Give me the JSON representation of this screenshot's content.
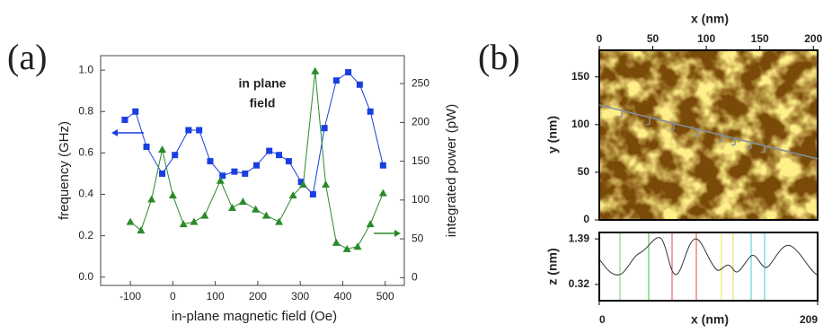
{
  "chart_data": [
    {
      "type": "line",
      "panel_label": "(a)",
      "xlabel": "in-plane magnetic field (Oe)",
      "ylabel": "frequency (GHz)",
      "y2label": "integrated power (pW)",
      "annotations": [
        "in plane",
        "field"
      ],
      "xlim": [
        -170,
        545
      ],
      "xticks": [
        -100,
        0,
        100,
        200,
        300,
        400,
        500
      ],
      "ylim": [
        -0.04,
        1.07
      ],
      "yticks": [
        {
          "value": 0,
          "label": "0.0"
        },
        0.2,
        0.4,
        0.6,
        0.8,
        {
          "value": 1,
          "label": "1.0"
        }
      ],
      "y2lim": [
        -10,
        286
      ],
      "y2ticks": [
        0,
        50,
        100,
        150,
        200,
        250
      ],
      "series": [
        {
          "color": "#1a3fe0",
          "marker": "square",
          "x": [
            -113,
            -88,
            -62,
            -25,
            5,
            37,
            62,
            88,
            117,
            145,
            170,
            197,
            227,
            250,
            273,
            302,
            330,
            357,
            385,
            413,
            440,
            465,
            495
          ],
          "values": [
            0.76,
            0.8,
            0.63,
            0.5,
            0.59,
            0.71,
            0.71,
            0.56,
            0.49,
            0.51,
            0.5,
            0.54,
            0.61,
            0.59,
            0.56,
            0.46,
            0.4,
            0.72,
            0.95,
            0.99,
            0.93,
            0.8,
            0.54
          ]
        },
        {
          "color": "#2a8a2a",
          "marker": "triangle",
          "axis": "y2",
          "x": [
            -100,
            -75,
            -50,
            -25,
            0,
            25,
            50,
            75,
            112,
            140,
            165,
            195,
            220,
            250,
            283,
            307,
            335,
            360,
            385,
            410,
            435,
            465,
            495
          ],
          "values": [
            72,
            61,
            101,
            165,
            106,
            69,
            72,
            80,
            125,
            90,
            98,
            88,
            80,
            72,
            106,
            120,
            266,
            120,
            45,
            37,
            40,
            69,
            109
          ]
        }
      ]
    },
    {
      "type": "image",
      "panel_label": "(b)",
      "xlabel": "x (nm)",
      "ylabel": "y (nm)",
      "xlim": [
        0,
        204
      ],
      "xticks": [
        0,
        50,
        100,
        150,
        200
      ],
      "ylim": [
        0,
        178
      ],
      "yticks": [
        0,
        50,
        100,
        150
      ]
    },
    {
      "type": "profile",
      "xlabel": "x (nm)",
      "ylabel": "z (nm)",
      "xlim": [
        0,
        209
      ],
      "xticks": [
        0,
        209
      ],
      "ylim": [
        -0.06,
        1.54
      ],
      "yticks": [
        0.32,
        1.39
      ]
    }
  ]
}
